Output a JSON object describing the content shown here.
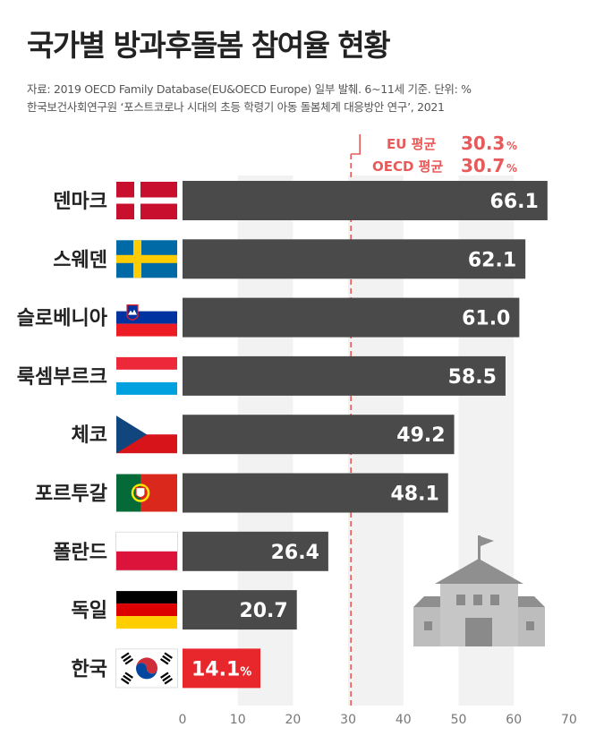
{
  "title": "국가별 방과후돌봄 참여율 현황",
  "source_line1": "자료: 2019 OECD Family Database(EU&OECD Europe) 일부 발췌.  6~11세 기준. 단위: %",
  "source_line2": "한국보건사회연구원 ‘포스트코로나 시대의 초등 학령기 아동 돌봄체계 대응방안 연구’, 2021",
  "averages": [
    {
      "label": "EU 평균",
      "value": "30.3",
      "unit": "%"
    },
    {
      "label": "OECD 평균",
      "value": "30.7",
      "unit": "%"
    }
  ],
  "highlight_color": "#e8272c",
  "bar_color": "#4a4a4a",
  "avg_color": "#e85a5a",
  "chart_data": {
    "type": "bar",
    "orientation": "horizontal",
    "categories": [
      "덴마크",
      "스웨덴",
      "슬로베니아",
      "룩셈부르크",
      "체코",
      "포르투갈",
      "폴란드",
      "독일",
      "한국"
    ],
    "values": [
      66.1,
      62.1,
      61.0,
      58.5,
      49.2,
      48.1,
      26.4,
      20.7,
      14.1
    ],
    "value_labels": [
      "66.1",
      "62.1",
      "61.0",
      "58.5",
      "49.2",
      "48.1",
      "26.4",
      "20.7",
      "14.1"
    ],
    "highlight_unit": "%",
    "flags": [
      "denmark-flag",
      "sweden-flag",
      "slovenia-flag",
      "luxembourg-flag",
      "czech-flag",
      "portugal-flag",
      "poland-flag",
      "germany-flag",
      "korea-flag"
    ],
    "xlim": [
      0,
      70
    ],
    "xticks": [
      0,
      10,
      20,
      30,
      40,
      50,
      60,
      70
    ],
    "reference_line": 30.5,
    "grid": "alternating vertical bands",
    "highlight_index": 8
  }
}
